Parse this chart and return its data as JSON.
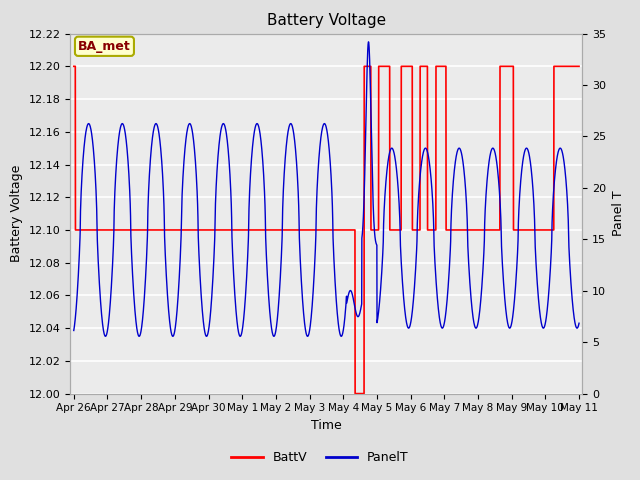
{
  "title": "Battery Voltage",
  "xlabel": "Time",
  "ylabel_left": "Battery Voltage",
  "ylabel_right": "Panel T",
  "annotation_text": "BA_met",
  "annotation_bg": "#ffffcc",
  "annotation_border": "#aaaa00",
  "annotation_text_color": "#880000",
  "ylim_left": [
    12.0,
    12.22
  ],
  "ylim_right": [
    0,
    35
  ],
  "x_tick_labels": [
    "Apr 26",
    "Apr 27",
    "Apr 28",
    "Apr 29",
    "Apr 30",
    "May 1",
    "May 2",
    "May 3",
    "May 4",
    "May 5",
    "May 6",
    "May 7",
    "May 8",
    "May 9",
    "May 10",
    "May 11"
  ],
  "background_color": "#e0e0e0",
  "plot_bg": "#ebebeb",
  "grid_color": "#ffffff",
  "batt_color": "#ff0000",
  "panel_color": "#0000cc",
  "legend_batt": "BattV",
  "legend_panel": "PanelT"
}
